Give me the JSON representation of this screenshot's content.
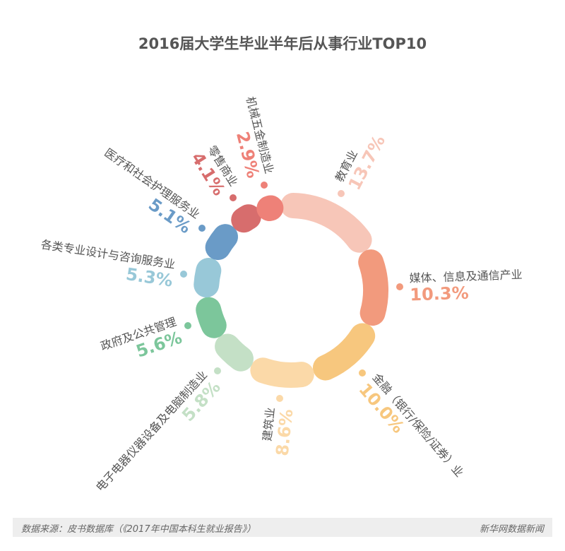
{
  "chart_data": {
    "type": "pie",
    "variant": "rounded-segment ring",
    "title": "2016届大学生毕业半年后从事行业TOP10",
    "unit": "%",
    "categories": [
      "教育业",
      "媒体、信息及通信产业",
      "金融（银行/保险/证券）业",
      "建筑业",
      "电子电器仪器设备及电脑制造业",
      "政府及公共管理",
      "各类专业设计与咨询服务业",
      "医疗和社会护理服务业",
      "零售商业",
      "机械五金制造业"
    ],
    "values": [
      13.7,
      10.3,
      10.0,
      8.6,
      5.8,
      5.6,
      5.3,
      5.1,
      4.1,
      2.9
    ],
    "labels": [
      "13.7%",
      "10.3%",
      "10.0%",
      "8.6%",
      "5.8%",
      "5.6%",
      "5.3%",
      "5.1%",
      "4.1%",
      "2.9%"
    ],
    "colors": [
      "#f7c6b8",
      "#f29a7d",
      "#f7c77e",
      "#fbd9a8",
      "#c4e0c6",
      "#7cc69b",
      "#98c8d8",
      "#6a9bc7",
      "#d76d6d",
      "#ee8178"
    ]
  },
  "footer": {
    "source": "数据来源：皮书数据库（《2017年中国本科生就业报告》）",
    "brand": "新华网数据新闻"
  }
}
